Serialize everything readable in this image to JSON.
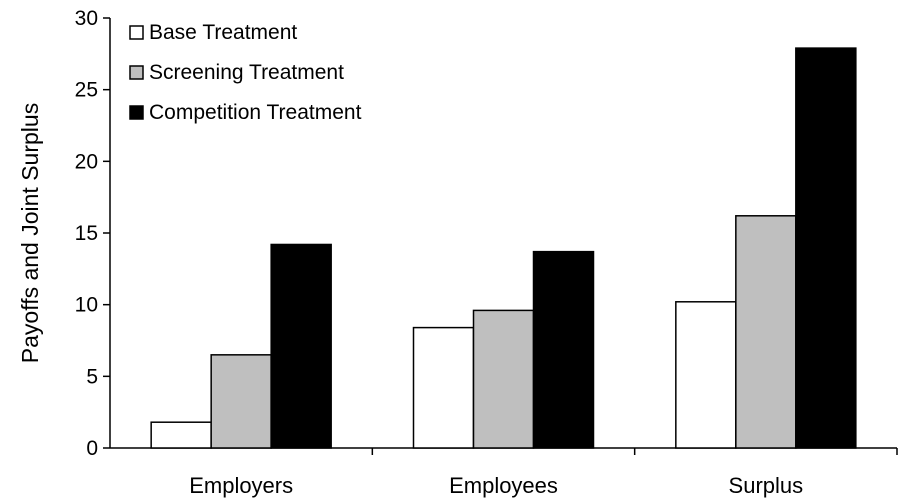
{
  "chart_data": {
    "type": "bar",
    "categories": [
      "Employers",
      "Employees",
      "Surplus"
    ],
    "series": [
      {
        "name": "Base Treatment",
        "color": "#ffffff",
        "values": [
          1.8,
          8.4,
          10.2
        ]
      },
      {
        "name": "Screening Treatment",
        "color": "#bfbfbf",
        "values": [
          6.5,
          9.6,
          16.2
        ]
      },
      {
        "name": "Competition Treatment",
        "color": "#000000",
        "values": [
          14.2,
          13.7,
          27.9
        ]
      }
    ],
    "title": "",
    "xlabel": "",
    "ylabel": "Payoffs and Joint Surplus",
    "ylim": [
      0,
      30
    ],
    "yticks": [
      0,
      5,
      10,
      15,
      20,
      25,
      30
    ],
    "grid": false,
    "legend_position": "top-left"
  }
}
